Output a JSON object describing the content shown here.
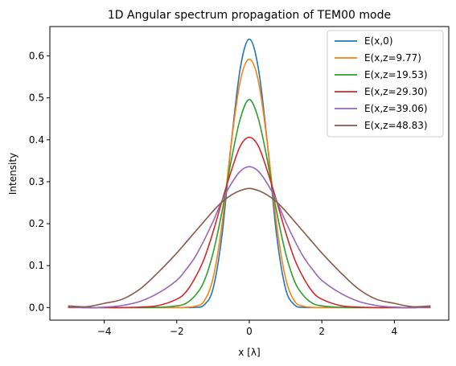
{
  "chart_data": {
    "type": "line",
    "title": "1D Angular spectrum propagation of TEM00 mode",
    "xlabel": "x [λ]",
    "ylabel": "Intensity",
    "xlim": [
      -5.5,
      5.5
    ],
    "ylim": [
      -0.03,
      0.67
    ],
    "xticks": [
      -4,
      -2,
      0,
      2,
      4
    ],
    "xtick_labels": [
      "−4",
      "−2",
      "0",
      "2",
      "4"
    ],
    "yticks": [
      0.0,
      0.1,
      0.2,
      0.3,
      0.4,
      0.5,
      0.6
    ],
    "ytick_labels": [
      "0.0",
      "0.1",
      "0.2",
      "0.3",
      "0.4",
      "0.5",
      "0.6"
    ],
    "legend_position": "top-right",
    "grid": false,
    "x": [
      -5,
      -4.5,
      -4,
      -3.5,
      -3,
      -2.5,
      -2,
      -1.75,
      -1.5,
      -1.25,
      -1,
      -0.75,
      -0.5,
      -0.25,
      0,
      0.25,
      0.5,
      0.75,
      1,
      1.25,
      1.5,
      1.75,
      2,
      2.5,
      3,
      3.5,
      4,
      4.5,
      5
    ],
    "series": [
      {
        "name": "E(x,0)",
        "color": "#1f77b4",
        "values": [
          0.0,
          0.0,
          0.0,
          0.0,
          0.0,
          0.0,
          0.0,
          0.0,
          0.0005,
          0.006,
          0.045,
          0.175,
          0.39,
          0.57,
          0.64,
          0.57,
          0.39,
          0.175,
          0.045,
          0.006,
          0.0005,
          0.0,
          0.0,
          0.0,
          0.0,
          0.0,
          0.0,
          0.0,
          0.0
        ]
      },
      {
        "name": "E(x,z=9.77)",
        "color": "#ff7f0e",
        "values": [
          0.0,
          0.0,
          0.0,
          0.0,
          0.0,
          0.0,
          0.0,
          0.0005,
          0.003,
          0.015,
          0.07,
          0.2,
          0.39,
          0.54,
          0.592,
          0.54,
          0.39,
          0.2,
          0.07,
          0.015,
          0.003,
          0.0005,
          0.0,
          0.0,
          0.0,
          0.0,
          0.0,
          0.0,
          0.0
        ]
      },
      {
        "name": "E(x,z=19.53)",
        "color": "#2ca02c",
        "values": [
          0.001,
          0.0,
          0.0,
          0.0,
          0.0,
          0.0005,
          0.004,
          0.01,
          0.028,
          0.062,
          0.13,
          0.23,
          0.35,
          0.45,
          0.496,
          0.45,
          0.35,
          0.23,
          0.13,
          0.062,
          0.028,
          0.01,
          0.004,
          0.0005,
          0.0,
          0.0,
          0.0,
          0.0,
          0.001
        ]
      },
      {
        "name": "E(x,z=29.30)",
        "color": "#d62728",
        "values": [
          0.001,
          0.0,
          0.0,
          0.0,
          0.001,
          0.005,
          0.02,
          0.037,
          0.07,
          0.115,
          0.18,
          0.255,
          0.325,
          0.385,
          0.406,
          0.385,
          0.325,
          0.255,
          0.18,
          0.115,
          0.07,
          0.037,
          0.02,
          0.005,
          0.001,
          0.0,
          0.0,
          0.0,
          0.001
        ]
      },
      {
        "name": "E(x,z=39.06)",
        "color": "#9467bd",
        "values": [
          0.002,
          0.0,
          0.001,
          0.005,
          0.015,
          0.035,
          0.065,
          0.09,
          0.12,
          0.16,
          0.205,
          0.255,
          0.295,
          0.325,
          0.336,
          0.325,
          0.295,
          0.255,
          0.205,
          0.16,
          0.12,
          0.09,
          0.065,
          0.035,
          0.015,
          0.005,
          0.001,
          0.0,
          0.002
        ]
      },
      {
        "name": "E(x,z=48.83)",
        "color": "#8c564b",
        "values": [
          0.004,
          0.002,
          0.01,
          0.02,
          0.045,
          0.085,
          0.13,
          0.155,
          0.18,
          0.205,
          0.23,
          0.252,
          0.268,
          0.279,
          0.284,
          0.279,
          0.268,
          0.252,
          0.23,
          0.205,
          0.18,
          0.155,
          0.13,
          0.085,
          0.045,
          0.02,
          0.01,
          0.002,
          0.004
        ]
      }
    ]
  }
}
